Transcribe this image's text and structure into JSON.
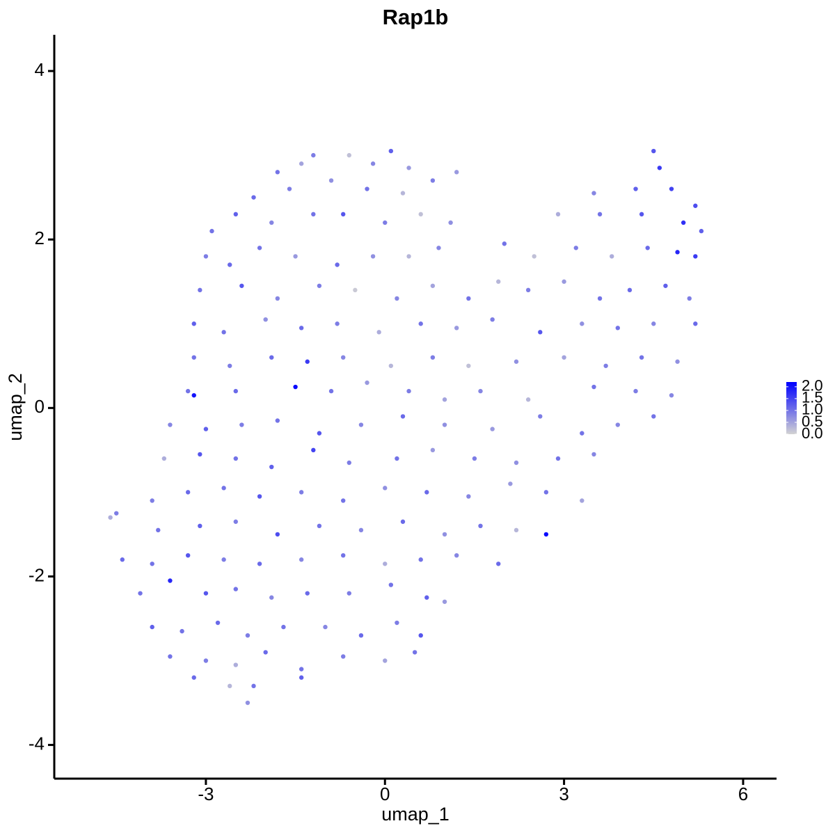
{
  "chart_data": {
    "type": "scatter",
    "title": "Rap1b",
    "xlabel": "umap_1",
    "ylabel": "umap_2",
    "xlim": [
      -5.54,
      6.56
    ],
    "ylim": [
      -4.4,
      4.43
    ],
    "xticks": [
      -3,
      0,
      3,
      6
    ],
    "yticks": [
      -4,
      -2,
      0,
      2,
      4
    ],
    "color_scale": {
      "low": "#d3d3d3",
      "high": "#0000ff",
      "clim": [
        0,
        2.2
      ],
      "ticks": [
        {
          "value": 0,
          "label": "0.0"
        },
        {
          "value": 0.5,
          "label": "0.5"
        },
        {
          "value": 1,
          "label": "1.0"
        },
        {
          "value": 1.5,
          "label": "1.5"
        },
        {
          "value": 2,
          "label": "2.0"
        }
      ]
    },
    "x": [
      -1.2,
      -0.6,
      0.1,
      0.4,
      -0.2,
      -1.8,
      -1.4,
      4.5,
      4.6,
      -2.2,
      -1.6,
      -0.9,
      -0.3,
      0.3,
      0.8,
      1.2,
      3.5,
      4.2,
      4.8,
      5.2,
      -2.9,
      -2.5,
      -1.9,
      -1.2,
      -0.7,
      0.0,
      0.6,
      1.1,
      2.9,
      3.6,
      4.3,
      5.0,
      5.3,
      -3.0,
      -2.6,
      -2.1,
      -1.5,
      -0.8,
      -0.2,
      0.4,
      0.9,
      2.0,
      2.5,
      3.2,
      3.8,
      4.4,
      4.9,
      5.2,
      -3.1,
      -2.4,
      -1.8,
      -1.1,
      -0.5,
      0.2,
      0.8,
      1.4,
      1.9,
      2.4,
      3.0,
      3.6,
      4.1,
      4.7,
      5.1,
      -3.2,
      -2.7,
      -2.0,
      -1.4,
      -0.8,
      -0.1,
      0.6,
      1.2,
      1.8,
      2.6,
      3.3,
      3.9,
      4.5,
      5.2,
      -3.2,
      -2.6,
      -1.9,
      -1.3,
      -0.7,
      0.1,
      0.8,
      1.4,
      2.2,
      3.0,
      3.7,
      4.3,
      4.9,
      -3.3,
      -3.2,
      -2.5,
      -1.5,
      -0.9,
      -0.3,
      0.4,
      1.0,
      1.6,
      2.4,
      3.5,
      4.2,
      4.8,
      -3.6,
      -3.0,
      -2.4,
      -1.8,
      -1.1,
      -0.4,
      0.3,
      1.0,
      1.8,
      2.6,
      3.3,
      3.9,
      4.5,
      -3.7,
      -3.1,
      -2.5,
      -1.9,
      -1.2,
      -0.6,
      0.2,
      0.8,
      1.5,
      2.2,
      2.9,
      3.5,
      -3.9,
      -3.3,
      -2.7,
      -2.1,
      -1.4,
      -0.7,
      0.0,
      0.7,
      1.4,
      2.1,
      2.7,
      3.3,
      -4.6,
      -4.5,
      -3.8,
      -3.1,
      -2.5,
      -1.8,
      -1.1,
      -0.4,
      0.3,
      1.0,
      1.6,
      2.2,
      2.7,
      -4.4,
      -3.9,
      -3.3,
      -2.7,
      -2.1,
      -1.4,
      -0.7,
      0.0,
      0.6,
      1.2,
      1.9,
      -4.1,
      -3.6,
      -3.0,
      -2.5,
      -1.9,
      -1.3,
      -0.6,
      0.1,
      0.7,
      1.0,
      -3.9,
      -3.4,
      -2.8,
      -2.3,
      -1.7,
      -1.0,
      -0.4,
      0.2,
      0.6,
      -3.6,
      -3.0,
      -2.5,
      -2.0,
      -1.4,
      -0.7,
      0.0,
      0.5,
      -2.6,
      -2.3,
      -2.2,
      -3.2,
      -1.4
    ],
    "values": [
      3.0,
      3.0,
      3.05,
      2.85,
      2.9,
      2.8,
      2.9,
      3.05,
      2.85,
      2.5,
      2.6,
      2.7,
      2.6,
      2.55,
      2.7,
      2.8,
      2.55,
      2.6,
      2.6,
      2.4,
      2.1,
      2.3,
      2.2,
      2.3,
      2.3,
      2.2,
      2.3,
      2.2,
      2.3,
      2.3,
      2.3,
      2.2,
      2.1,
      1.8,
      1.7,
      1.9,
      1.8,
      1.7,
      1.8,
      1.8,
      1.9,
      1.95,
      1.8,
      1.9,
      1.8,
      1.9,
      1.85,
      1.8,
      1.4,
      1.45,
      1.3,
      1.45,
      1.4,
      1.3,
      1.45,
      1.3,
      1.5,
      1.4,
      1.5,
      1.3,
      1.4,
      1.45,
      1.3,
      1.0,
      0.9,
      1.05,
      0.95,
      1.0,
      0.9,
      1.0,
      0.95,
      1.05,
      0.9,
      1.0,
      0.95,
      1.0,
      1.0,
      0.6,
      0.5,
      0.6,
      0.55,
      0.6,
      0.5,
      0.6,
      0.5,
      0.55,
      0.6,
      0.5,
      0.6,
      0.55,
      0.2,
      0.15,
      0.2,
      0.25,
      0.2,
      0.3,
      0.2,
      0.1,
      0.2,
      0.1,
      0.25,
      0.2,
      0.15,
      -0.2,
      -0.25,
      -0.2,
      -0.15,
      -0.3,
      -0.2,
      -0.1,
      -0.2,
      -0.25,
      -0.1,
      -0.3,
      -0.2,
      -0.1,
      -0.6,
      -0.55,
      -0.6,
      -0.7,
      -0.5,
      -0.65,
      -0.6,
      -0.5,
      -0.6,
      -0.65,
      -0.6,
      -0.55,
      -1.1,
      -1.0,
      -0.95,
      -1.05,
      -1.0,
      -1.1,
      -0.95,
      -1.0,
      -1.05,
      -0.9,
      -1.0,
      -1.1,
      -1.3,
      -1.25,
      -1.45,
      -1.4,
      -1.35,
      -1.5,
      -1.4,
      -1.45,
      -1.35,
      -1.5,
      -1.4,
      -1.45,
      -1.5,
      -1.8,
      -1.85,
      -1.75,
      -1.8,
      -1.85,
      -1.8,
      -1.75,
      -1.85,
      -1.8,
      -1.75,
      -1.85,
      -2.2,
      -2.05,
      -2.2,
      -2.15,
      -2.25,
      -2.2,
      -2.2,
      -2.1,
      -2.25,
      -2.3,
      -2.6,
      -2.65,
      -2.55,
      -2.7,
      -2.6,
      -2.6,
      -2.7,
      -2.55,
      -2.7,
      -2.95,
      -3.0,
      -3.05,
      -2.9,
      -3.1,
      -2.95,
      -3.0,
      -2.9,
      -3.3,
      -3.5,
      -3.3,
      -3.2,
      -3.2
    ],
    "color_values": [
      0.9,
      0.2,
      1.2,
      0.6,
      0.8,
      1.0,
      0.5,
      1.3,
      1.6,
      1.1,
      0.9,
      0.7,
      1.0,
      0.3,
      0.9,
      0.6,
      0.8,
      1.2,
      1.5,
      1.4,
      1.0,
      1.2,
      0.8,
      1.0,
      1.3,
      0.9,
      0.2,
      0.7,
      0.4,
      1.0,
      1.3,
      1.7,
      1.2,
      0.9,
      1.1,
      1.0,
      0.6,
      1.1,
      0.7,
      0.3,
      0.8,
      1.0,
      0.2,
      0.9,
      0.4,
      1.1,
      1.8,
      1.6,
      1.0,
      1.3,
      0.8,
      0.9,
      0.1,
      0.8,
      0.5,
      1.0,
      0.3,
      0.9,
      0.6,
      1.0,
      1.1,
      1.2,
      0.9,
      1.2,
      1.0,
      0.7,
      1.1,
      0.9,
      0.4,
      1.0,
      0.6,
      0.9,
      1.3,
      0.7,
      1.0,
      0.8,
      1.1,
      1.0,
      0.9,
      1.1,
      1.6,
      0.8,
      0.3,
      0.9,
      0.2,
      0.7,
      0.5,
      0.9,
      1.0,
      0.7,
      1.0,
      2.0,
      1.1,
      2.1,
      1.0,
      0.6,
      0.9,
      0.5,
      0.8,
      0.3,
      1.0,
      0.9,
      0.8,
      0.8,
      1.2,
      0.9,
      1.0,
      1.3,
      0.8,
      1.1,
      0.7,
      0.6,
      0.9,
      1.0,
      0.8,
      1.0,
      0.4,
      1.3,
      1.0,
      1.2,
      1.5,
      0.9,
      1.0,
      0.6,
      0.9,
      0.7,
      1.0,
      0.8,
      0.9,
      1.1,
      1.0,
      1.3,
      0.9,
      1.0,
      0.7,
      1.1,
      0.8,
      0.6,
      1.0,
      0.5,
      0.4,
      0.9,
      1.0,
      1.2,
      0.9,
      1.4,
      1.0,
      0.8,
      1.1,
      0.7,
      1.0,
      0.3,
      2.1,
      1.1,
      1.0,
      1.3,
      0.9,
      1.1,
      0.8,
      1.0,
      0.4,
      1.0,
      0.8,
      1.1,
      1.0,
      1.8,
      1.3,
      1.0,
      0.8,
      1.1,
      0.9,
      1.0,
      1.2,
      0.6,
      1.2,
      1.0,
      1.1,
      0.9,
      1.0,
      0.8,
      1.1,
      0.9,
      1.3,
      1.0,
      0.9,
      0.4,
      1.1,
      1.0,
      0.9,
      0.5,
      1.0,
      0.3,
      0.7,
      1.0,
      1.1,
      1.2
    ]
  }
}
